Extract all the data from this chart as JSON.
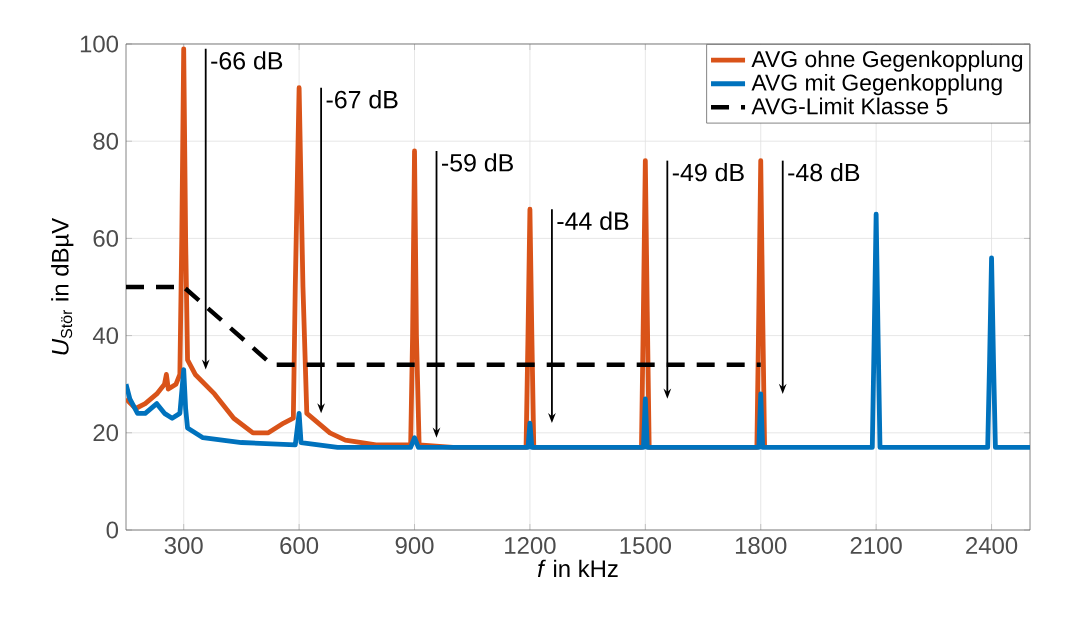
{
  "chart_data": {
    "type": "line",
    "xlabel": "*f* in kHz",
    "ylabel": "*U*$_{Stör}$ in dBµV",
    "xlim": [
      150,
      2500
    ],
    "ylim": [
      0,
      100
    ],
    "xticks": [
      300,
      600,
      900,
      1200,
      1500,
      1800,
      2100,
      2400
    ],
    "yticks": [
      0,
      20,
      40,
      60,
      80,
      100
    ],
    "grid": true,
    "legend": "top right",
    "series": [
      {
        "name": "AVG ohne Gegenkopplung",
        "color": "#d95319",
        "line_style": "solid",
        "x": [
          150,
          175,
          200,
          230,
          250,
          255,
          260,
          280,
          290,
          295,
          300,
          305,
          310,
          330,
          380,
          430,
          480,
          520,
          560,
          585,
          590,
          600,
          610,
          620,
          650,
          680,
          720,
          800,
          890,
          895,
          900,
          905,
          912,
          1000,
          1190,
          1195,
          1200,
          1205,
          1210,
          1490,
          1495,
          1500,
          1505,
          1510,
          1790,
          1795,
          1800,
          1805,
          1810
        ],
        "values": [
          27,
          25,
          26,
          28,
          30,
          32,
          29,
          30,
          32,
          60,
          99,
          60,
          35,
          32,
          28,
          23,
          20,
          20,
          22,
          23,
          50,
          91,
          50,
          24,
          22,
          20,
          18.5,
          17.5,
          17.5,
          40,
          78,
          40,
          17.5,
          17,
          17,
          40,
          66,
          40,
          17,
          17,
          45,
          76,
          45,
          17,
          17,
          45,
          76,
          45,
          17
        ]
      },
      {
        "name": "AVG mit Gegenkopplung",
        "color": "#0072bd",
        "line_style": "solid",
        "x": [
          150,
          160,
          180,
          200,
          230,
          250,
          270,
          290,
          300,
          305,
          310,
          350,
          450,
          590,
          600,
          605,
          700,
          890,
          900,
          910,
          1195,
          1200,
          1205,
          1495,
          1500,
          1505,
          1795,
          1800,
          1805,
          2090,
          2095,
          2100,
          2105,
          2110,
          2390,
          2395,
          2400,
          2405,
          2410,
          2500
        ],
        "values": [
          30,
          27,
          24,
          24,
          26,
          24,
          23,
          24,
          33,
          25,
          21,
          19,
          18,
          17.5,
          24,
          18,
          17,
          17,
          19,
          17,
          17,
          22,
          17,
          17,
          27,
          17,
          17,
          28,
          17,
          17,
          40,
          65,
          40,
          17,
          17,
          35,
          56,
          35,
          17,
          17
        ]
      },
      {
        "name": "AVG-Limit Klasse 5",
        "color": "#000000",
        "line_style": "dashed",
        "x": [
          150,
          300,
          530,
          1800
        ],
        "values": [
          50,
          50,
          34,
          34
        ]
      }
    ],
    "annotations": [
      {
        "text": "-66 dB",
        "x": 300,
        "y": 99
      },
      {
        "text": "-67 dB",
        "x": 600,
        "y": 91
      },
      {
        "text": "-59 dB",
        "x": 900,
        "y": 78
      },
      {
        "text": "-44 dB",
        "x": 1200,
        "y": 66
      },
      {
        "text": "-49 dB",
        "x": 1500,
        "y": 76
      },
      {
        "text": "-48 dB",
        "x": 1800,
        "y": 76
      }
    ]
  }
}
